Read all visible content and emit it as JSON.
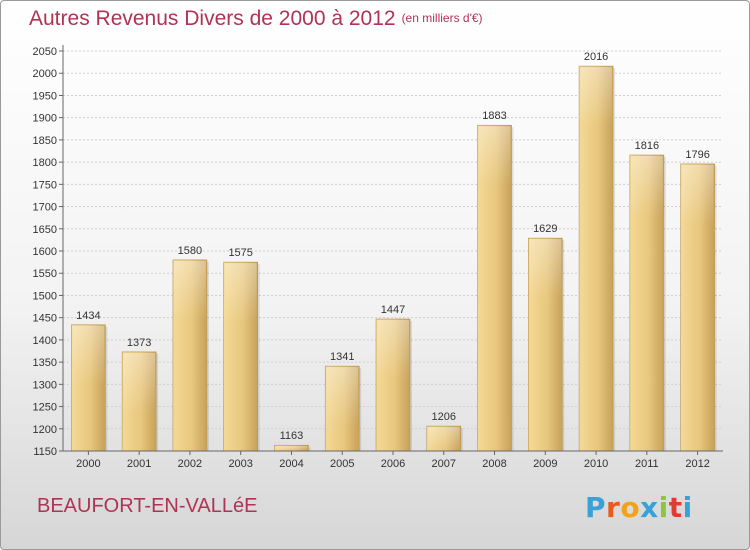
{
  "header": {
    "title": "Autres Revenus Divers de 2000 à 2012",
    "unit": "(en milliers d'€)"
  },
  "footer": {
    "location": "BEAUFORT-EN-VALLéE",
    "logo_text": "Proxiti",
    "logo_colors": [
      "#3aa0d8",
      "#e85c1e",
      "#f3a21a",
      "#3aa0d8",
      "#8cc63f",
      "#e03c31",
      "#3aa0d8"
    ]
  },
  "colors": {
    "title": "#b03355",
    "bar_light": "#f6dfa0",
    "bar_dark": "#c9a65a",
    "axis": "#555555"
  },
  "chart_data": {
    "type": "bar",
    "title": "Autres Revenus Divers de 2000 à 2012",
    "categories": [
      "2000",
      "2001",
      "2002",
      "2003",
      "2004",
      "2005",
      "2006",
      "2007",
      "2008",
      "2009",
      "2010",
      "2011",
      "2012"
    ],
    "values": [
      1434,
      1373,
      1580,
      1575,
      1163,
      1341,
      1447,
      1206,
      1883,
      1629,
      2016,
      1816,
      1796
    ],
    "ylim": [
      1150,
      2050
    ],
    "yticks": [
      1150,
      1200,
      1250,
      1300,
      1350,
      1400,
      1450,
      1500,
      1550,
      1600,
      1650,
      1700,
      1750,
      1800,
      1850,
      1900,
      1950,
      2000,
      2050
    ],
    "grid": true,
    "xlabel": "",
    "ylabel": ""
  }
}
